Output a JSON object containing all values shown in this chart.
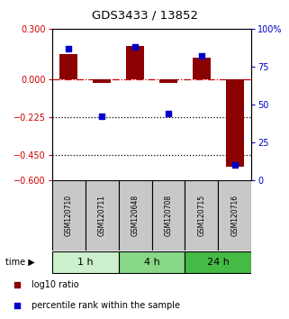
{
  "title": "GDS3433 / 13852",
  "samples": [
    "GSM120710",
    "GSM120711",
    "GSM120648",
    "GSM120708",
    "GSM120715",
    "GSM120716"
  ],
  "log10_ratio": [
    0.15,
    -0.02,
    0.2,
    -0.02,
    0.13,
    -0.52
  ],
  "percentile_rank": [
    87,
    42,
    88,
    44,
    82,
    10
  ],
  "ylim_left": [
    -0.6,
    0.3
  ],
  "ylim_right": [
    0,
    100
  ],
  "yticks_left": [
    0.3,
    0.0,
    -0.225,
    -0.45,
    -0.6
  ],
  "yticks_right": [
    100,
    75,
    50,
    25,
    0
  ],
  "time_groups": [
    {
      "label": "1 h",
      "start": 0,
      "end": 2,
      "color": "#ccf0cc"
    },
    {
      "label": "4 h",
      "start": 2,
      "end": 4,
      "color": "#88d888"
    },
    {
      "label": "24 h",
      "start": 4,
      "end": 6,
      "color": "#44bb44"
    }
  ],
  "bar_color": "#8B0000",
  "square_color": "#0000CC",
  "sample_box_color": "#C8C8C8",
  "title_color": "#000000",
  "left_axis_color": "#CC0000",
  "right_axis_color": "#0000CC",
  "legend_bar_label": "log10 ratio",
  "legend_sq_label": "percentile rank within the sample"
}
